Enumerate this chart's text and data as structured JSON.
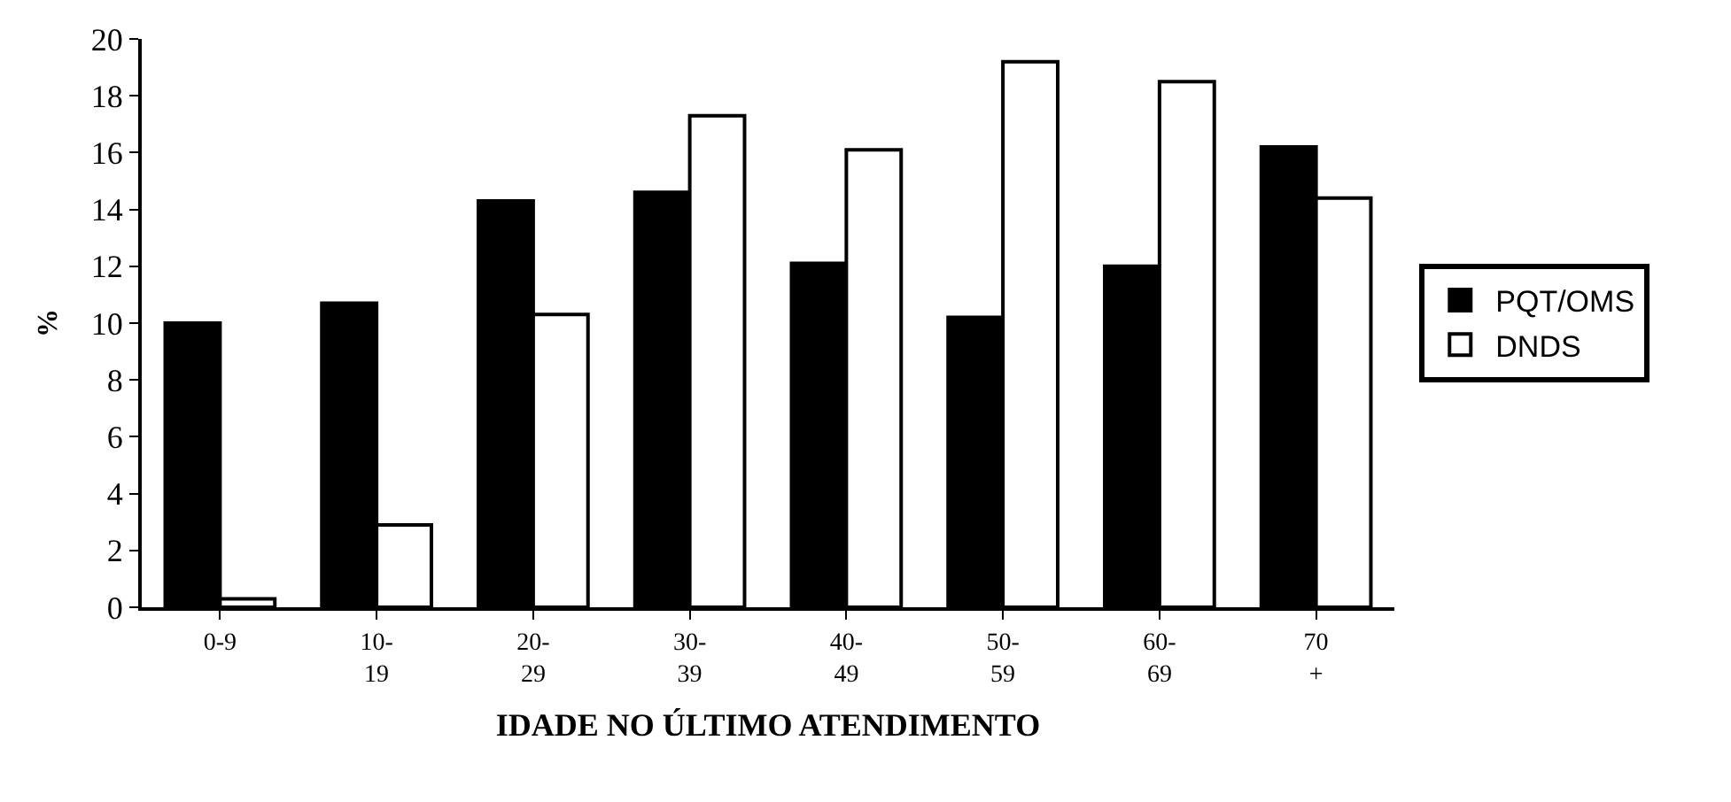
{
  "chart_data": {
    "type": "bar",
    "xlabel": "IDADE NO ÚLTIMO ATENDIMENTO",
    "ylabel": "%",
    "categories": [
      "0-9",
      "10-\n19",
      "20-\n29",
      "30-\n39",
      "40-\n49",
      "50-\n59",
      "60-\n69",
      "70\n+"
    ],
    "series": [
      {
        "name": "PQT/OMS",
        "color": "#000000",
        "values": [
          10,
          10.7,
          14.3,
          14.6,
          12.1,
          10.2,
          12.0,
          16.2
        ]
      },
      {
        "name": "DNDS",
        "color": "#ffffff",
        "values": [
          0.3,
          2.9,
          10.3,
          17.3,
          16.1,
          19.2,
          18.5,
          14.4
        ]
      }
    ],
    "ylim": [
      0,
      20
    ],
    "yticks": [
      0,
      2,
      4,
      6,
      8,
      10,
      12,
      14,
      16,
      18,
      20
    ],
    "legend": "right"
  }
}
